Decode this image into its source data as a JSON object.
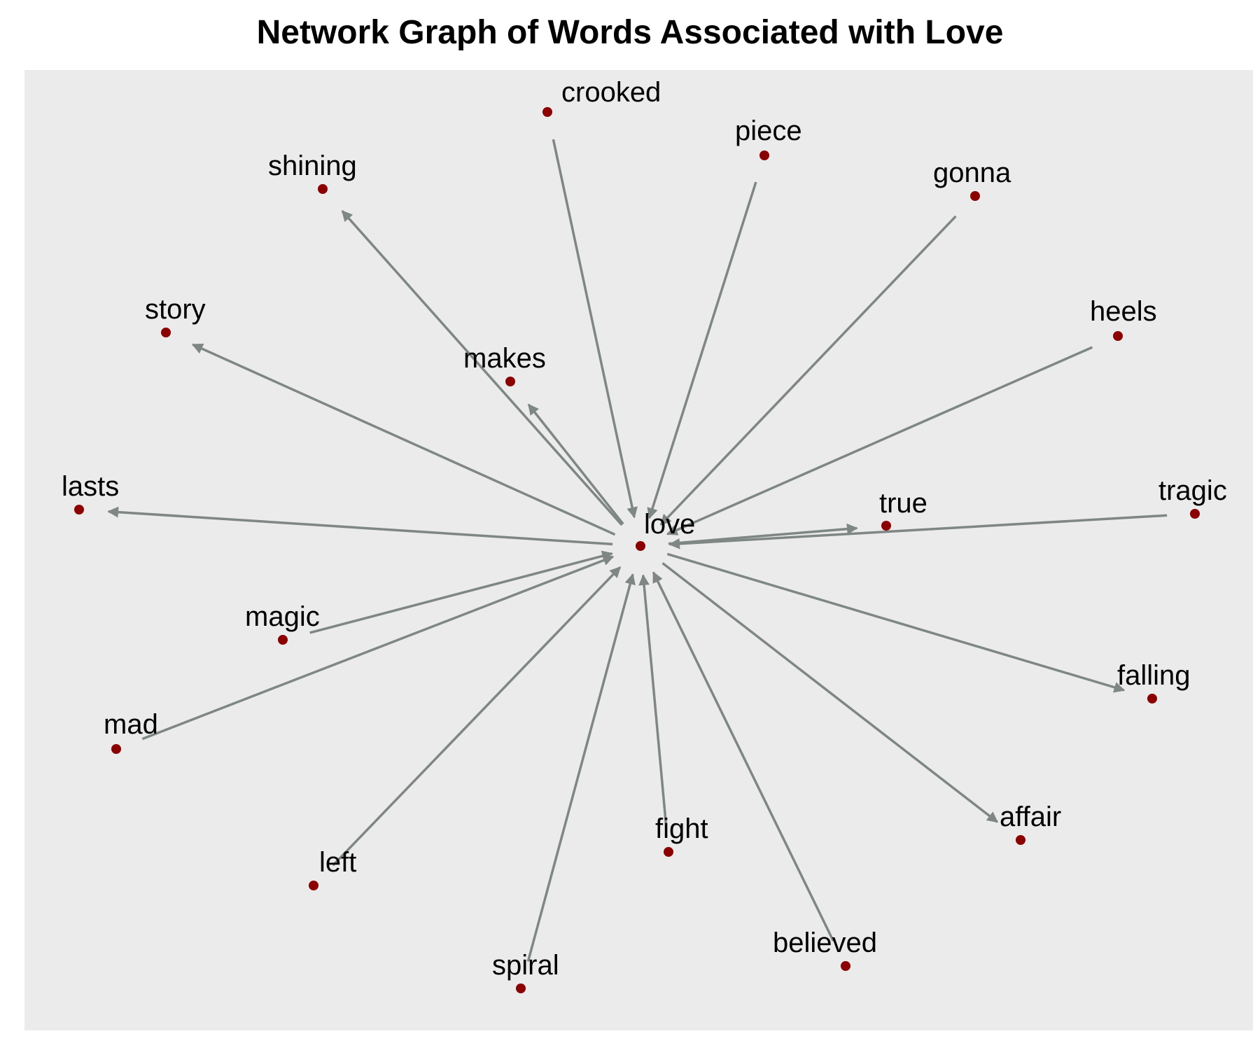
{
  "title": "Network Graph of Words Associated with Love",
  "colors": {
    "background_panel": "#ebebeb",
    "node": "#8b0000",
    "edge": "#7f8784",
    "text": "#000000"
  },
  "graph": {
    "center": "love",
    "nodes": [
      "love",
      "crooked",
      "piece",
      "gonna",
      "shining",
      "heels",
      "story",
      "makes",
      "lasts",
      "true",
      "tragic",
      "magic",
      "mad",
      "falling",
      "affair",
      "fight",
      "left",
      "believed",
      "spiral"
    ],
    "edges": [
      {
        "from": "crooked",
        "to": "love"
      },
      {
        "from": "piece",
        "to": "love"
      },
      {
        "from": "gonna",
        "to": "love"
      },
      {
        "from": "heels",
        "to": "love"
      },
      {
        "from": "tragic",
        "to": "love"
      },
      {
        "from": "magic",
        "to": "love"
      },
      {
        "from": "mad",
        "to": "love"
      },
      {
        "from": "left",
        "to": "love"
      },
      {
        "from": "spiral",
        "to": "love"
      },
      {
        "from": "fight",
        "to": "love"
      },
      {
        "from": "believed",
        "to": "love"
      },
      {
        "from": "love",
        "to": "shining"
      },
      {
        "from": "love",
        "to": "story"
      },
      {
        "from": "love",
        "to": "makes"
      },
      {
        "from": "love",
        "to": "lasts"
      },
      {
        "from": "love",
        "to": "true"
      },
      {
        "from": "love",
        "to": "falling"
      },
      {
        "from": "love",
        "to": "affair"
      }
    ]
  }
}
